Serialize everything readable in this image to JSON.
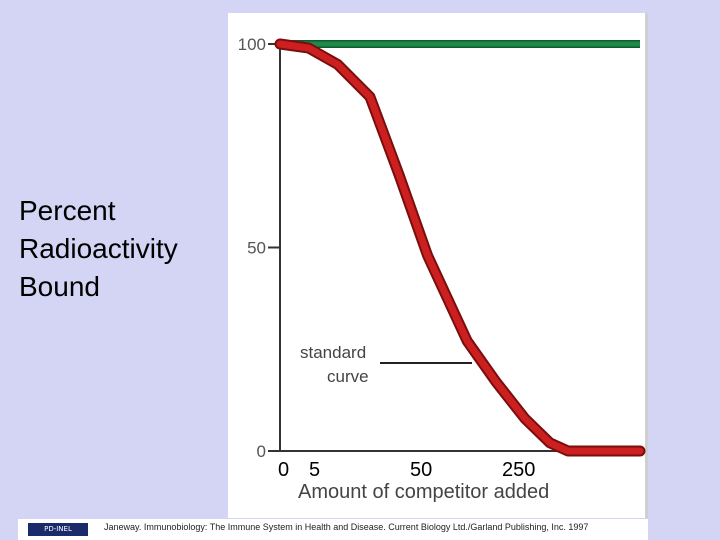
{
  "chart_data": {
    "type": "line",
    "ylabel_lines": [
      "Percent",
      "Radioactivity",
      "Bound"
    ],
    "xlabel": "Amount of competitor added",
    "y_ticks": [
      {
        "value": 100,
        "label": "100"
      },
      {
        "value": 50,
        "label": "50"
      },
      {
        "value": 0,
        "label": "0"
      }
    ],
    "x_tick_labels": [
      "0",
      "5",
      "50",
      "250"
    ],
    "ylim": [
      0,
      100
    ],
    "series": [
      {
        "role": "total",
        "color": "#1e8a4a",
        "points": [
          [
            0,
            100
          ],
          [
            1,
            100
          ]
        ]
      },
      {
        "role": "standard curve",
        "color": "#cc1f1f",
        "points": [
          [
            0,
            100
          ],
          [
            0.08,
            99
          ],
          [
            0.16,
            95
          ],
          [
            0.25,
            87
          ],
          [
            0.33,
            68
          ],
          [
            0.41,
            48
          ],
          [
            0.52,
            27
          ],
          [
            0.6,
            17
          ],
          [
            0.68,
            8
          ],
          [
            0.75,
            2
          ],
          [
            0.8,
            0
          ],
          [
            0.92,
            0
          ],
          [
            1,
            0
          ]
        ]
      }
    ],
    "annotations": [
      {
        "text_lines": [
          "standard",
          "curve"
        ],
        "target_series": "standard curve"
      }
    ],
    "grid": false
  },
  "footer": {
    "logo_text": "PD-INEL",
    "credit": "Janeway. Immunobiology: The Immune System in Health and Disease. Current Biology Ltd./Garland Publishing, Inc. 1997"
  }
}
